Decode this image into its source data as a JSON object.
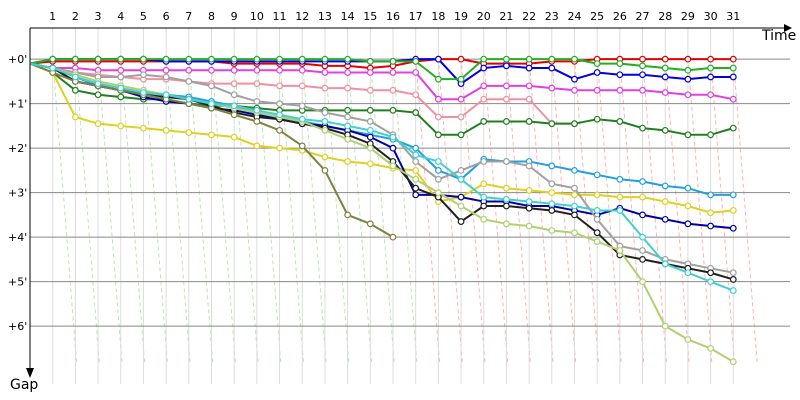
{
  "chart_data": {
    "type": "line",
    "x_label": "Time",
    "y_label": "Gap",
    "x": [
      0,
      1,
      2,
      3,
      4,
      5,
      6,
      7,
      8,
      9,
      10,
      11,
      12,
      13,
      14,
      15,
      16,
      17,
      18,
      19,
      20,
      21,
      22,
      23,
      24,
      25,
      26,
      27,
      28,
      29,
      30,
      31
    ],
    "xlim": [
      0,
      33.5
    ],
    "xticks": [
      1,
      2,
      3,
      4,
      5,
      6,
      7,
      8,
      9,
      10,
      11,
      12,
      13,
      14,
      15,
      16,
      17,
      18,
      19,
      20,
      21,
      22,
      23,
      24,
      25,
      26,
      27,
      28,
      29,
      30,
      31
    ],
    "ylim": [
      -0.7,
      7.3
    ],
    "yticks": [
      {
        "value": 0,
        "label": "+0'"
      },
      {
        "value": 1,
        "label": "+1'"
      },
      {
        "value": 2,
        "label": "+2'"
      },
      {
        "value": 3,
        "label": "+3'"
      },
      {
        "value": 4,
        "label": "+4'"
      },
      {
        "value": 5,
        "label": "+5'"
      },
      {
        "value": 6,
        "label": "+6'"
      }
    ],
    "grid": true,
    "series": [
      {
        "color": "#e00000",
        "values": [
          0.1,
          0.05,
          0.05,
          0.05,
          0.05,
          0.05,
          0.05,
          0.05,
          0.05,
          0.1,
          0.1,
          0.1,
          0.1,
          0.15,
          0.15,
          0.2,
          0.15,
          0.05,
          0,
          0,
          0.1,
          0.1,
          0.1,
          0.05,
          0.05,
          0,
          0,
          0,
          0,
          0,
          0,
          0
        ]
      },
      {
        "color": "#0000e0",
        "values": [
          0.1,
          0,
          0,
          0,
          0,
          0,
          0.05,
          0.05,
          0.05,
          0.05,
          0.05,
          0.05,
          0.05,
          0.05,
          0.05,
          0.05,
          0.05,
          0,
          0,
          0.55,
          0.2,
          0.15,
          0.2,
          0.2,
          0.45,
          0.3,
          0.35,
          0.35,
          0.4,
          0.45,
          0.4,
          0.4
        ]
      },
      {
        "color": "#20b020",
        "values": [
          0.1,
          0,
          0,
          0,
          0,
          0,
          0,
          0,
          0,
          0,
          0,
          0,
          0,
          0,
          0,
          0.05,
          0.05,
          0.05,
          0.45,
          0.45,
          0,
          0,
          0,
          0,
          0,
          0.1,
          0.1,
          0.15,
          0.2,
          0.25,
          0.2,
          0.2
        ]
      },
      {
        "color": "#e040e0",
        "values": [
          0.1,
          0.2,
          0.2,
          0.25,
          0.25,
          0.25,
          0.25,
          0.25,
          0.25,
          0.25,
          0.25,
          0.25,
          0.25,
          0.3,
          0.3,
          0.3,
          0.3,
          0.3,
          0.9,
          0.9,
          0.6,
          0.6,
          0.6,
          0.65,
          0.7,
          0.7,
          0.7,
          0.7,
          0.75,
          0.8,
          0.8,
          0.9
        ]
      },
      {
        "color": "#f090a0",
        "values": [
          0.1,
          0.2,
          0.3,
          0.35,
          0.4,
          0.45,
          0.45,
          0.5,
          0.55,
          0.55,
          0.55,
          0.6,
          0.6,
          0.65,
          0.65,
          0.7,
          0.7,
          0.8,
          1.3,
          1.3,
          0.9,
          0.9,
          0.9,
          1.45,
          1.45,
          null,
          null,
          null,
          null,
          null,
          null,
          null
        ]
      },
      {
        "color": "#208020",
        "values": [
          0.1,
          0.3,
          0.7,
          0.8,
          0.85,
          0.9,
          0.9,
          1.0,
          1.05,
          1.05,
          1.1,
          1.15,
          1.15,
          1.15,
          1.15,
          1.15,
          1.15,
          1.2,
          1.7,
          1.7,
          1.4,
          1.4,
          1.4,
          1.45,
          1.45,
          1.35,
          1.4,
          1.55,
          1.6,
          1.7,
          1.7,
          1.55
        ]
      },
      {
        "color": "#20a0e0",
        "values": [
          0.1,
          0.2,
          0.4,
          0.6,
          0.7,
          0.75,
          0.8,
          0.85,
          0.95,
          1.05,
          1.2,
          1.3,
          1.4,
          1.5,
          1.6,
          1.7,
          1.8,
          2.0,
          2.5,
          2.7,
          2.25,
          2.3,
          2.3,
          2.4,
          2.5,
          2.6,
          2.7,
          2.75,
          2.85,
          2.9,
          3.05,
          3.05
        ]
      },
      {
        "color": "#e0d020",
        "values": [
          0.1,
          0.3,
          1.3,
          1.45,
          1.5,
          1.55,
          1.6,
          1.65,
          1.7,
          1.75,
          1.95,
          2.0,
          2.05,
          2.2,
          2.3,
          2.35,
          2.45,
          2.5,
          3.2,
          3.1,
          2.8,
          2.9,
          2.95,
          3.0,
          3.05,
          3.05,
          3.1,
          3.1,
          3.2,
          3.3,
          3.45,
          3.4
        ]
      },
      {
        "color": "#0000a0",
        "values": [
          0.1,
          0.2,
          0.5,
          0.6,
          0.7,
          0.85,
          0.95,
          1.0,
          1.1,
          1.15,
          1.25,
          1.35,
          1.45,
          1.5,
          1.6,
          1.75,
          2.0,
          3.05,
          3.05,
          3.1,
          3.2,
          3.2,
          3.3,
          3.3,
          3.4,
          3.5,
          3.35,
          3.5,
          3.6,
          3.7,
          3.75,
          3.8
        ]
      },
      {
        "color": "#a0a0a0",
        "values": [
          0.1,
          0.2,
          0.3,
          0.4,
          0.4,
          0.35,
          0.4,
          0.5,
          0.6,
          0.8,
          0.95,
          1.0,
          1.05,
          1.2,
          1.3,
          1.4,
          1.7,
          2.3,
          2.7,
          2.5,
          2.3,
          2.3,
          2.4,
          2.8,
          2.9,
          3.6,
          4.2,
          4.3,
          4.5,
          4.6,
          4.7,
          4.8
        ]
      },
      {
        "color": "#202020",
        "values": [
          0.1,
          0.2,
          0.5,
          0.6,
          0.7,
          0.8,
          0.85,
          0.9,
          1.05,
          1.2,
          1.3,
          1.35,
          1.45,
          1.55,
          1.7,
          1.9,
          2.3,
          2.9,
          3.1,
          3.65,
          3.3,
          3.3,
          3.35,
          3.4,
          3.5,
          3.9,
          4.4,
          4.5,
          4.6,
          4.7,
          4.8,
          4.95
        ]
      },
      {
        "color": "#808040",
        "values": [
          0.1,
          0.3,
          0.5,
          0.6,
          0.7,
          0.8,
          0.9,
          1.0,
          1.1,
          1.25,
          1.4,
          1.6,
          1.95,
          2.5,
          3.5,
          3.7,
          4.0,
          null,
          null,
          null,
          null,
          null,
          null,
          null,
          null,
          null,
          null,
          null,
          null,
          null,
          null,
          null
        ]
      },
      {
        "color": "#b0d070",
        "values": [
          0.1,
          0.2,
          0.35,
          0.5,
          0.6,
          0.7,
          0.8,
          0.9,
          1.0,
          1.1,
          1.2,
          1.3,
          1.4,
          1.6,
          1.8,
          2.0,
          2.4,
          2.7,
          3.0,
          3.3,
          3.6,
          3.7,
          3.75,
          3.85,
          3.9,
          4.1,
          4.3,
          5.0,
          6.0,
          6.3,
          6.5,
          6.8
        ]
      },
      {
        "color": "#40d0d0",
        "values": [
          0.1,
          0.2,
          0.4,
          0.55,
          0.65,
          0.75,
          0.8,
          0.9,
          1.0,
          1.05,
          1.15,
          1.25,
          1.35,
          1.4,
          1.5,
          1.6,
          1.75,
          2.15,
          2.3,
          2.7,
          3.1,
          3.15,
          3.2,
          3.25,
          3.3,
          3.4,
          3.4,
          4.0,
          4.6,
          4.8,
          5.0,
          5.2
        ]
      }
    ]
  }
}
